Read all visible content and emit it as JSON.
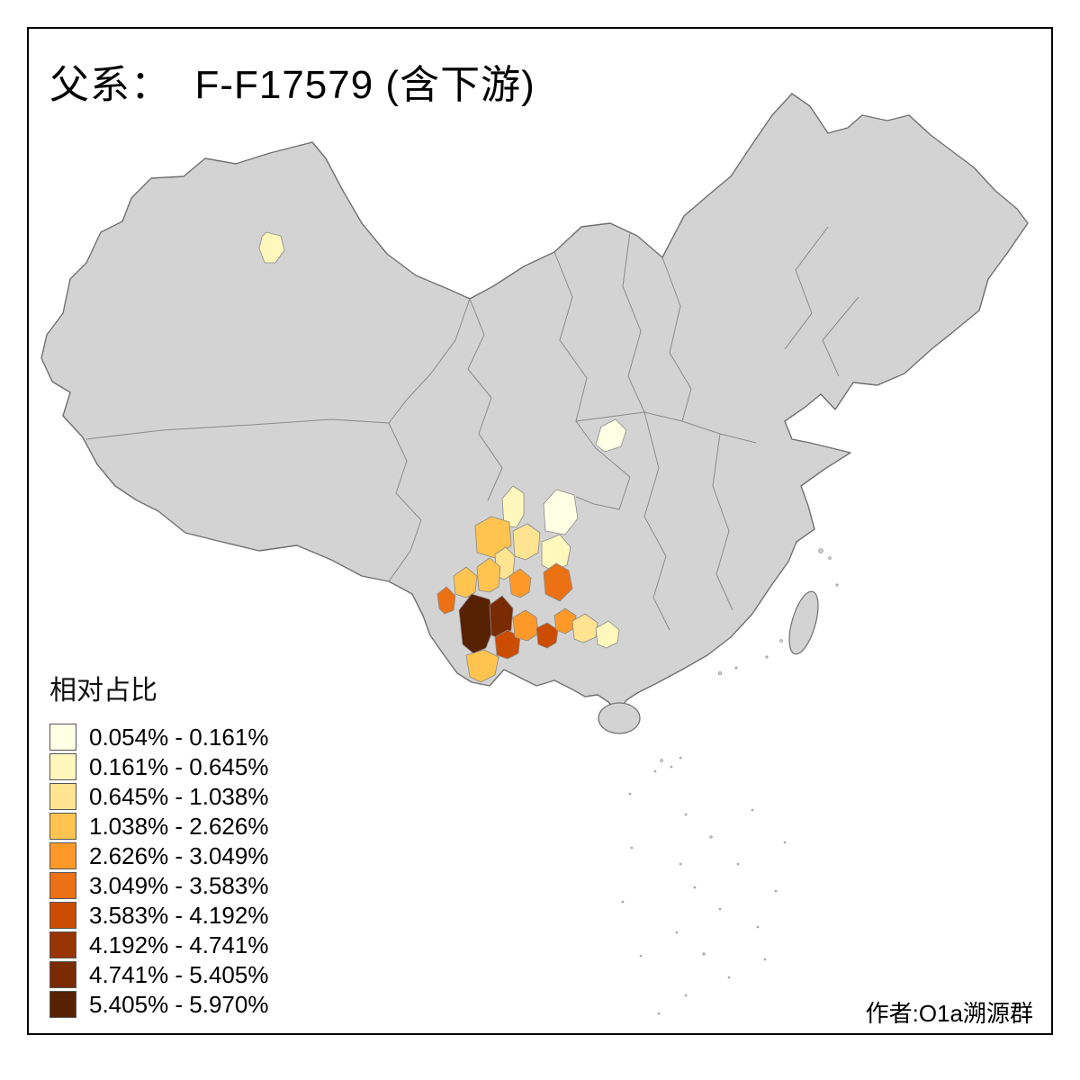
{
  "title": "父系：  F-F17579 (含下游)",
  "credit": "作者:O1a溯源群",
  "legend": {
    "title": "相对占比",
    "classes": [
      {
        "label": "0.054% - 0.161%",
        "color": "#FFFFE5"
      },
      {
        "label": "0.161% - 0.645%",
        "color": "#FFF7BC"
      },
      {
        "label": "0.645% - 1.038%",
        "color": "#FEE391"
      },
      {
        "label": "1.038% - 2.626%",
        "color": "#FEC44F"
      },
      {
        "label": "2.626% - 3.049%",
        "color": "#FE9929"
      },
      {
        "label": "3.049% - 3.583%",
        "color": "#EC7014"
      },
      {
        "label": "3.583% - 4.192%",
        "color": "#CC4C02"
      },
      {
        "label": "4.192% - 4.741%",
        "color": "#993404"
      },
      {
        "label": "4.741% - 5.405%",
        "color": "#7A2B04"
      },
      {
        "label": "5.405% - 5.970%",
        "color": "#572103"
      }
    ]
  },
  "map": {
    "base_fill": "#D3D3D3",
    "outline_color": "#707070",
    "inner_border_color": "#8A8A8A",
    "sea_color": "#FFFFFF"
  }
}
